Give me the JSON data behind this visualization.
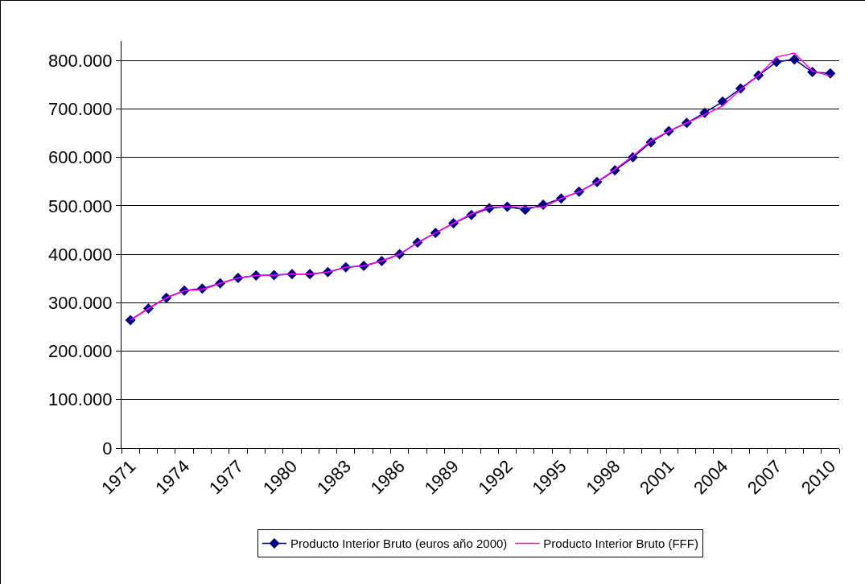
{
  "chart_data": {
    "type": "line",
    "categories": [
      "1971",
      null,
      null,
      "1974",
      null,
      null,
      "1977",
      null,
      null,
      "1980",
      null,
      null,
      "1983",
      null,
      null,
      "1986",
      null,
      null,
      "1989",
      null,
      null,
      "1992",
      null,
      null,
      "1995",
      null,
      null,
      "1998",
      null,
      null,
      "2001",
      null,
      null,
      "2004",
      null,
      null,
      "2007",
      null,
      null,
      "2010"
    ],
    "series": [
      {
        "name": "Producto Interior Bruto (euros año 2000)",
        "color": "#000080",
        "marker": "diamond",
        "values": [
          264000,
          288000,
          310000,
          325000,
          329000,
          340000,
          351000,
          356000,
          357000,
          359000,
          359000,
          363000,
          373000,
          376000,
          386000,
          400000,
          424000,
          444000,
          464000,
          481000,
          495000,
          498000,
          492000,
          502000,
          515000,
          529000,
          549000,
          573000,
          600000,
          631000,
          654000,
          671000,
          692000,
          715000,
          742000,
          769000,
          797000,
          802000,
          776000,
          773000
        ]
      },
      {
        "name": "Producto Interior Bruto (FFF)",
        "color": "#ff00ff",
        "marker": "none",
        "values": [
          264000,
          288000,
          310000,
          325000,
          327000,
          340000,
          351000,
          356000,
          357000,
          359000,
          359000,
          363000,
          373000,
          376000,
          386000,
          400000,
          424000,
          444000,
          464000,
          483000,
          497000,
          498000,
          497000,
          497000,
          515000,
          529000,
          549000,
          575000,
          603000,
          634000,
          654000,
          671000,
          688000,
          706000,
          740000,
          769000,
          807000,
          815000,
          778000,
          768000
        ]
      }
    ],
    "ylim": [
      0,
      840000
    ],
    "yticks": [
      {
        "value": 0,
        "label": "0"
      },
      {
        "value": 100000,
        "label": "100.000"
      },
      {
        "value": 200000,
        "label": "200.000"
      },
      {
        "value": 300000,
        "label": "300.000"
      },
      {
        "value": 400000,
        "label": "400.000"
      },
      {
        "value": 500000,
        "label": "500.000"
      },
      {
        "value": 600000,
        "label": "600.000"
      },
      {
        "value": 700000,
        "label": "700.000"
      },
      {
        "value": 800000,
        "label": "800.000"
      }
    ],
    "grid": "y",
    "legend": "bottom"
  }
}
